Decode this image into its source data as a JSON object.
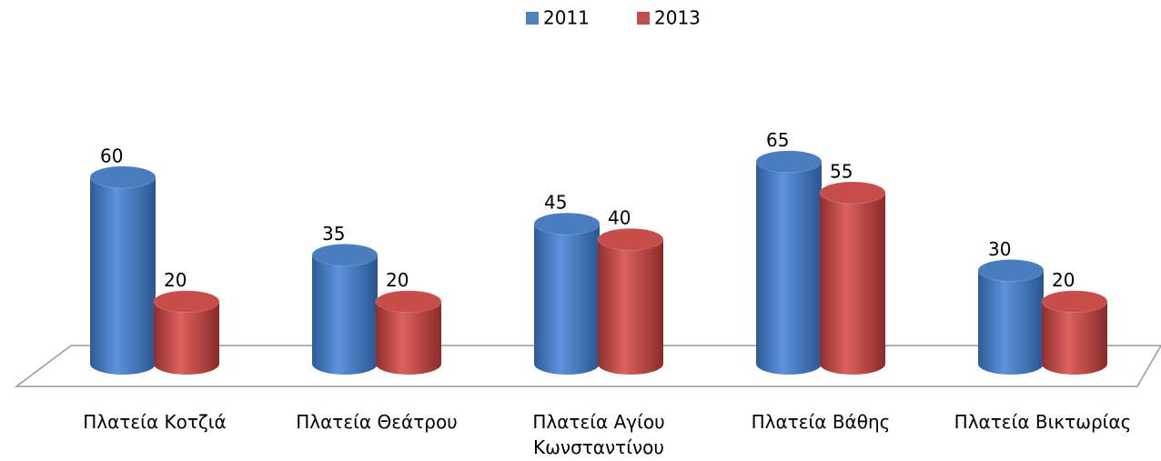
{
  "chart_data": {
    "type": "bar",
    "style": "3d-cylinder",
    "categories": [
      "Πλατεία Κοτζιά",
      "Πλατεία Θεάτρου",
      "Πλατεία Αγίου Κωνσταντίνου",
      "Πλατεία Βάθης",
      "Πλατεία Βικτωρίας"
    ],
    "series": [
      {
        "name": "2011",
        "color": "#4f81bd",
        "values": [
          60,
          35,
          45,
          65,
          30
        ]
      },
      {
        "name": "2013",
        "color": "#c0504d",
        "values": [
          20,
          20,
          40,
          55,
          20
        ]
      }
    ],
    "legend": "top"
  }
}
